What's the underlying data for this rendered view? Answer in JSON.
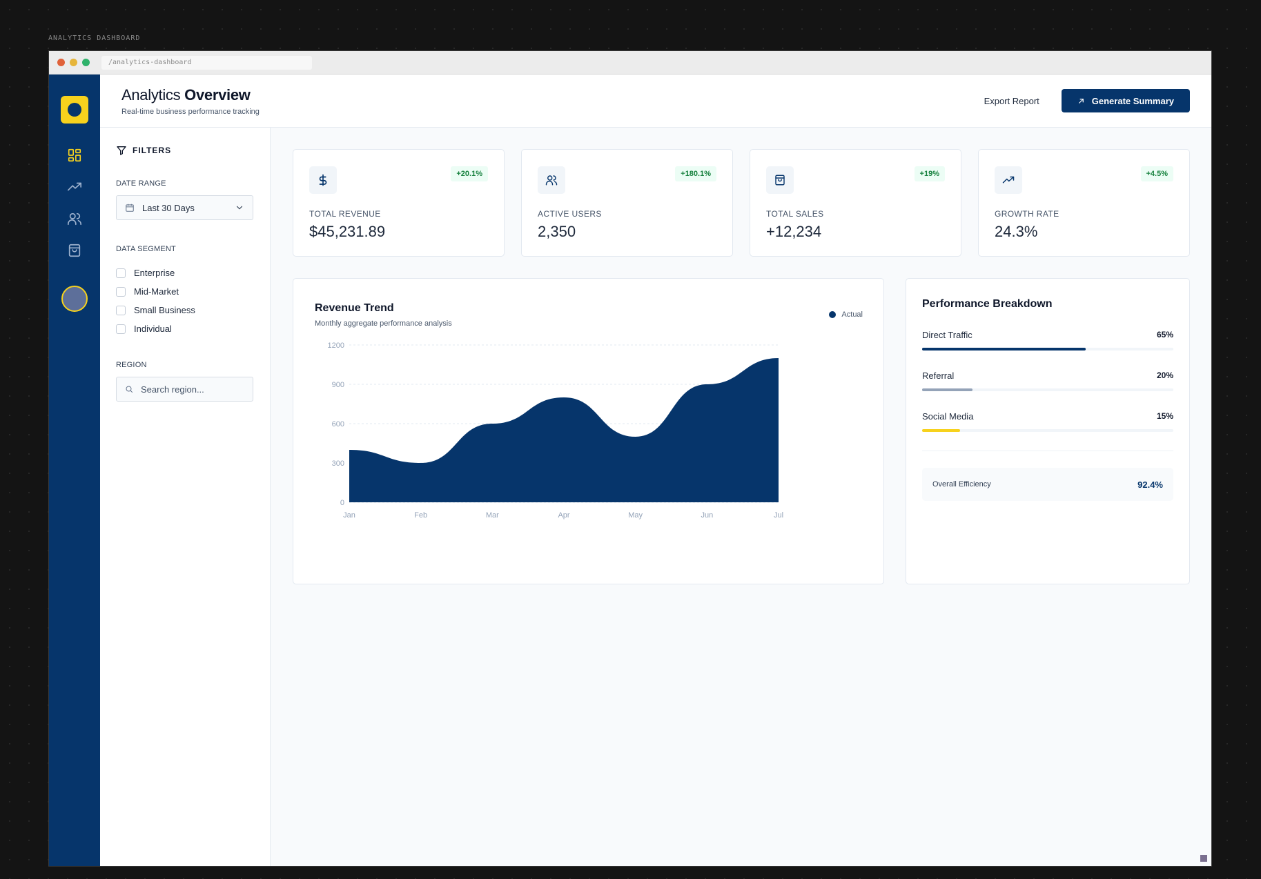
{
  "frame_label": "ANALYTICS DASHBOARD",
  "window": {
    "url": "/analytics-dashboard"
  },
  "header": {
    "title_light": "Analytics",
    "title_bold": "Overview",
    "subtitle": "Real-time business performance tracking",
    "export_label": "Export Report",
    "generate_label": "Generate Summary"
  },
  "rail": {
    "items": [
      {
        "icon": "dashboard-grid-icon",
        "active": true
      },
      {
        "icon": "trend-up-icon",
        "active": false
      },
      {
        "icon": "users-icon",
        "active": false
      },
      {
        "icon": "shopping-bag-icon",
        "active": false
      }
    ]
  },
  "filters": {
    "title": "FILTERS",
    "date_range_label": "DATE RANGE",
    "date_range_value": "Last 30 Days",
    "segment_label": "DATA SEGMENT",
    "segments": [
      "Enterprise",
      "Mid-Market",
      "Small Business",
      "Individual"
    ],
    "region_label": "REGION",
    "region_placeholder": "Search region..."
  },
  "kpis": [
    {
      "icon": "dollar-icon",
      "label": "TOTAL REVENUE",
      "value": "$45,231.89",
      "change": "+20.1%"
    },
    {
      "icon": "users-icon",
      "label": "ACTIVE USERS",
      "value": "2,350",
      "change": "+180.1%"
    },
    {
      "icon": "shopping-bag-icon",
      "label": "TOTAL SALES",
      "value": "+12,234",
      "change": "+19%"
    },
    {
      "icon": "trend-up-icon",
      "label": "GROWTH RATE",
      "value": "24.3%",
      "change": "+4.5%"
    }
  ],
  "revenue_trend": {
    "title": "Revenue Trend",
    "subtitle": "Monthly aggregate performance analysis",
    "legend": "Actual"
  },
  "chart_data": {
    "type": "area",
    "categories": [
      "Jan",
      "Feb",
      "Mar",
      "Apr",
      "May",
      "Jun",
      "Jul"
    ],
    "series": [
      {
        "name": "Actual",
        "values": [
          400,
          300,
          600,
          800,
          500,
          900,
          1100
        ],
        "color": "#06356b"
      }
    ],
    "yticks": [
      0,
      300,
      600,
      900,
      1200
    ],
    "ylim": [
      0,
      1200
    ],
    "grid": "horizontal dashed"
  },
  "performance": {
    "title": "Performance Breakdown",
    "items": [
      {
        "label": "Direct Traffic",
        "percent": "65%",
        "value": 0.65,
        "color": "#06356b"
      },
      {
        "label": "Referral",
        "percent": "20%",
        "value": 0.2,
        "color": "#94a3b8"
      },
      {
        "label": "Social Media",
        "percent": "15%",
        "value": 0.15,
        "color": "#f7d21d"
      }
    ],
    "efficiency_label": "Overall Efficiency",
    "efficiency_value": "92.4%"
  },
  "colors": {
    "brand": "#06356b",
    "accent": "#f7d21d",
    "positive": "#15803d"
  }
}
